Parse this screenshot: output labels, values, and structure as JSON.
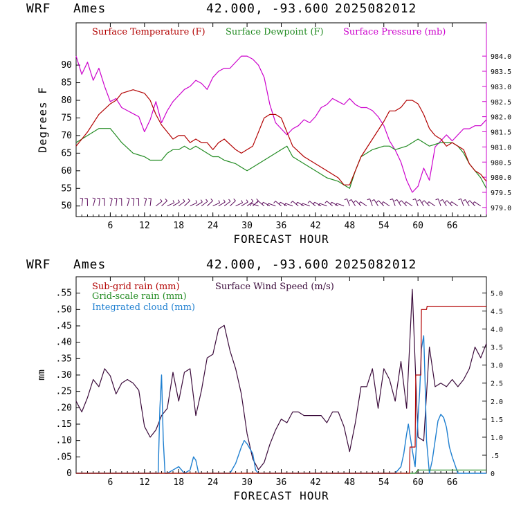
{
  "header": {
    "model": "WRF",
    "station": "Ames",
    "coords": "42.000, -93.600",
    "run": "2025082012"
  },
  "chart_data": [
    {
      "type": "line",
      "xlabel": "FORECAST HOUR",
      "ylabel": "Degrees F",
      "xlim": [
        0,
        72
      ],
      "ylim": [
        47,
        102
      ],
      "y2lim": [
        978.7,
        985.1
      ],
      "xticks": [
        6,
        12,
        18,
        24,
        30,
        36,
        42,
        48,
        54,
        60,
        66
      ],
      "yticks": [
        50,
        55,
        60,
        65,
        70,
        75,
        80,
        85,
        90
      ],
      "y2ticks": [
        "979.0",
        "979.5",
        "980.0",
        "980.5",
        "981.0",
        "981.5",
        "982.0",
        "982.5",
        "983.0",
        "983.5",
        "984.0"
      ],
      "legend": [
        "Surface Temperature (F)",
        "Surface Dewpoint (F)",
        "Surface Pressure (mb)"
      ],
      "colors": {
        "temperature": "#b20000",
        "dewpoint": "#228b22",
        "pressure": "#cc00cc",
        "wind_barbs": "#5a0a5a"
      },
      "series": [
        {
          "name": "Surface Temperature (F)",
          "axis": "left",
          "x": [
            0,
            2,
            4,
            6,
            7,
            8,
            10,
            12,
            13,
            14,
            15,
            16,
            17,
            18,
            19,
            20,
            21,
            22,
            23,
            24,
            25,
            26,
            28,
            29,
            30,
            31,
            32,
            33,
            34,
            35,
            36,
            37,
            38,
            40,
            42,
            44,
            46,
            47,
            48,
            49,
            50,
            52,
            54,
            55,
            56,
            57,
            58,
            59,
            60,
            61,
            62,
            63,
            64,
            65,
            66,
            67,
            68,
            69,
            70,
            71,
            72
          ],
          "y": [
            67,
            71,
            76,
            79,
            80,
            82,
            83,
            82,
            80,
            76,
            73,
            71,
            69,
            70,
            70,
            68,
            69,
            68,
            68,
            66,
            68,
            69,
            66,
            65,
            66,
            67,
            71,
            75,
            76,
            76,
            75,
            71,
            67,
            64,
            62,
            60,
            58,
            56,
            56,
            60,
            64,
            69,
            74,
            77,
            77,
            78,
            80,
            80,
            79,
            76,
            72,
            70,
            69,
            67,
            68,
            67,
            66,
            62,
            60,
            59,
            57
          ]
        },
        {
          "name": "Surface Dewpoint (F)",
          "axis": "left",
          "x": [
            0,
            2,
            4,
            6,
            7,
            8,
            10,
            12,
            13,
            14,
            15,
            16,
            17,
            18,
            19,
            20,
            21,
            22,
            23,
            24,
            25,
            26,
            28,
            29,
            30,
            31,
            32,
            34,
            36,
            37,
            38,
            40,
            42,
            44,
            46,
            47,
            48,
            49,
            50,
            52,
            54,
            55,
            56,
            58,
            60,
            61,
            62,
            64,
            66,
            67,
            68,
            69,
            70,
            71,
            72
          ],
          "y": [
            68,
            70,
            72,
            72,
            70,
            68,
            65,
            64,
            63,
            63,
            63,
            65,
            66,
            66,
            67,
            66,
            67,
            66,
            65,
            64,
            64,
            63,
            62,
            61,
            60,
            61,
            62,
            64,
            66,
            67,
            64,
            62,
            60,
            58,
            57,
            56,
            55,
            60,
            64,
            66,
            67,
            67,
            66,
            67,
            69,
            68,
            67,
            68,
            68,
            67,
            65,
            62,
            60,
            58,
            55
          ]
        },
        {
          "name": "Surface Pressure (mb)",
          "axis": "right",
          "x": [
            0,
            1,
            2,
            3,
            4,
            5,
            6,
            7,
            8,
            9,
            10,
            11,
            12,
            13,
            14,
            15,
            16,
            17,
            18,
            19,
            20,
            21,
            22,
            23,
            24,
            25,
            26,
            27,
            28,
            29,
            30,
            31,
            32,
            33,
            34,
            35,
            36,
            37,
            38,
            39,
            40,
            41,
            42,
            43,
            44,
            45,
            46,
            47,
            48,
            49,
            50,
            51,
            52,
            53,
            54,
            55,
            56,
            57,
            58,
            59,
            60,
            61,
            62,
            63,
            64,
            65,
            66,
            67,
            68,
            69,
            70,
            71,
            72
          ],
          "y": [
            984.0,
            983.4,
            983.8,
            983.2,
            983.6,
            983.0,
            982.5,
            982.6,
            982.3,
            982.2,
            982.1,
            982.0,
            981.5,
            981.9,
            982.5,
            981.8,
            982.2,
            982.5,
            982.7,
            982.9,
            983.0,
            983.2,
            983.1,
            982.9,
            983.3,
            983.5,
            983.6,
            983.6,
            983.8,
            984.0,
            984.0,
            983.9,
            983.7,
            983.3,
            982.4,
            981.8,
            981.6,
            981.4,
            981.6,
            981.7,
            981.9,
            981.8,
            982.0,
            982.3,
            982.4,
            982.6,
            982.5,
            982.4,
            982.6,
            982.4,
            982.3,
            982.3,
            982.2,
            982.0,
            981.7,
            981.2,
            980.9,
            980.5,
            979.9,
            979.5,
            979.7,
            980.3,
            979.9,
            981.0,
            981.2,
            981.4,
            981.2,
            981.4,
            981.6,
            981.6,
            981.7,
            981.7,
            981.9
          ]
        }
      ]
    },
    {
      "type": "line",
      "xlabel": "FORECAST HOUR",
      "ylabel": "mm",
      "xlim": [
        0,
        72
      ],
      "ylim": [
        0,
        0.6
      ],
      "y2lim": [
        0,
        5.45
      ],
      "xticks": [
        6,
        12,
        18,
        24,
        30,
        36,
        42,
        48,
        54,
        60,
        66
      ],
      "yticks": [
        ".05",
        ".10",
        ".15",
        ".20",
        ".25",
        ".30",
        ".35",
        ".40",
        ".45",
        ".50",
        ".55"
      ],
      "y2ticks": [
        ".5",
        "1.0",
        "1.5",
        "2.0",
        "2.5",
        "3.0",
        "3.5",
        "4.0",
        "4.5",
        "5.0"
      ],
      "legend": [
        "Sub-grid rain (mm)",
        "Grid-scale rain (mm)",
        "Integrated cloud (mm)",
        "Surface Wind Speed (m/s)"
      ],
      "colors": {
        "subgrid": "#b20000",
        "gridscale": "#228b22",
        "cloud": "#1e7fd0",
        "wind": "#3a0a3a"
      },
      "series": [
        {
          "name": "Sub-grid rain (mm)",
          "axis": "left",
          "x": [
            0,
            58.5,
            58.6,
            59.5,
            59.6,
            60.5,
            60.6,
            61.5,
            61.6,
            72
          ],
          "y": [
            0,
            0,
            0.08,
            0.08,
            0.3,
            0.3,
            0.5,
            0.5,
            0.51,
            0.51
          ]
        },
        {
          "name": "Grid-scale rain (mm)",
          "axis": "left",
          "x": [
            0,
            59.5,
            60,
            72
          ],
          "y": [
            0,
            0,
            0.01,
            0.01
          ]
        },
        {
          "name": "Integrated cloud (mm)",
          "axis": "left",
          "x": [
            0,
            14.4,
            14.7,
            15,
            15.3,
            15.6,
            16,
            17,
            18,
            19,
            20,
            20.6,
            21,
            21.5,
            22,
            27,
            28,
            29,
            29.5,
            30,
            31,
            31.5,
            32,
            56,
            57,
            57.5,
            58,
            58.3,
            59,
            59.5,
            60,
            60.3,
            60.6,
            61,
            61.2,
            61.5,
            62,
            62.5,
            63,
            63.5,
            64,
            64.5,
            65,
            65.5,
            66,
            67,
            72
          ],
          "y": [
            0,
            0,
            0.2,
            0.3,
            0.1,
            0,
            0,
            0.01,
            0.02,
            0,
            0.01,
            0.05,
            0.04,
            0,
            0,
            0,
            0.03,
            0.08,
            0.1,
            0.09,
            0.06,
            0.01,
            0,
            0,
            0.02,
            0.06,
            0.12,
            0.15,
            0.07,
            0.02,
            0.17,
            0.25,
            0.38,
            0.42,
            0.3,
            0.1,
            0,
            0.04,
            0.1,
            0.16,
            0.18,
            0.17,
            0.14,
            0.08,
            0.05,
            0,
            0
          ]
        },
        {
          "name": "Surface Wind Speed (m/s)",
          "axis": "right",
          "x": [
            0,
            1,
            2,
            3,
            4,
            5,
            6,
            7,
            8,
            9,
            10,
            11,
            12,
            13,
            14,
            15,
            16,
            17,
            18,
            19,
            20,
            21,
            22,
            23,
            24,
            25,
            26,
            27,
            28,
            29,
            30,
            31,
            32,
            33,
            34,
            35,
            36,
            37,
            38,
            39,
            40,
            41,
            42,
            43,
            44,
            45,
            46,
            47,
            48,
            49,
            50,
            51,
            52,
            53,
            54,
            55,
            56,
            57,
            58,
            59,
            60,
            61,
            62,
            63,
            64,
            65,
            66,
            67,
            68,
            69,
            70,
            71,
            72
          ],
          "y": [
            2.0,
            1.7,
            2.1,
            2.6,
            2.4,
            2.9,
            2.7,
            2.2,
            2.5,
            2.6,
            2.5,
            2.3,
            1.3,
            1.0,
            1.2,
            1.6,
            1.8,
            2.8,
            2.0,
            2.8,
            2.9,
            1.6,
            2.3,
            3.2,
            3.3,
            4.0,
            4.1,
            3.4,
            2.9,
            2.2,
            1.1,
            0.4,
            0.1,
            0.3,
            0.8,
            1.2,
            1.5,
            1.4,
            1.7,
            1.7,
            1.6,
            1.6,
            1.6,
            1.6,
            1.4,
            1.7,
            1.7,
            1.3,
            0.6,
            1.4,
            2.4,
            2.4,
            2.9,
            1.8,
            2.9,
            2.6,
            2.0,
            3.1,
            1.8,
            5.1,
            1.0,
            0.9,
            3.5,
            2.4,
            2.5,
            2.4,
            2.6,
            2.4,
            2.6,
            2.9,
            3.5,
            3.2,
            3.6
          ]
        }
      ]
    }
  ]
}
